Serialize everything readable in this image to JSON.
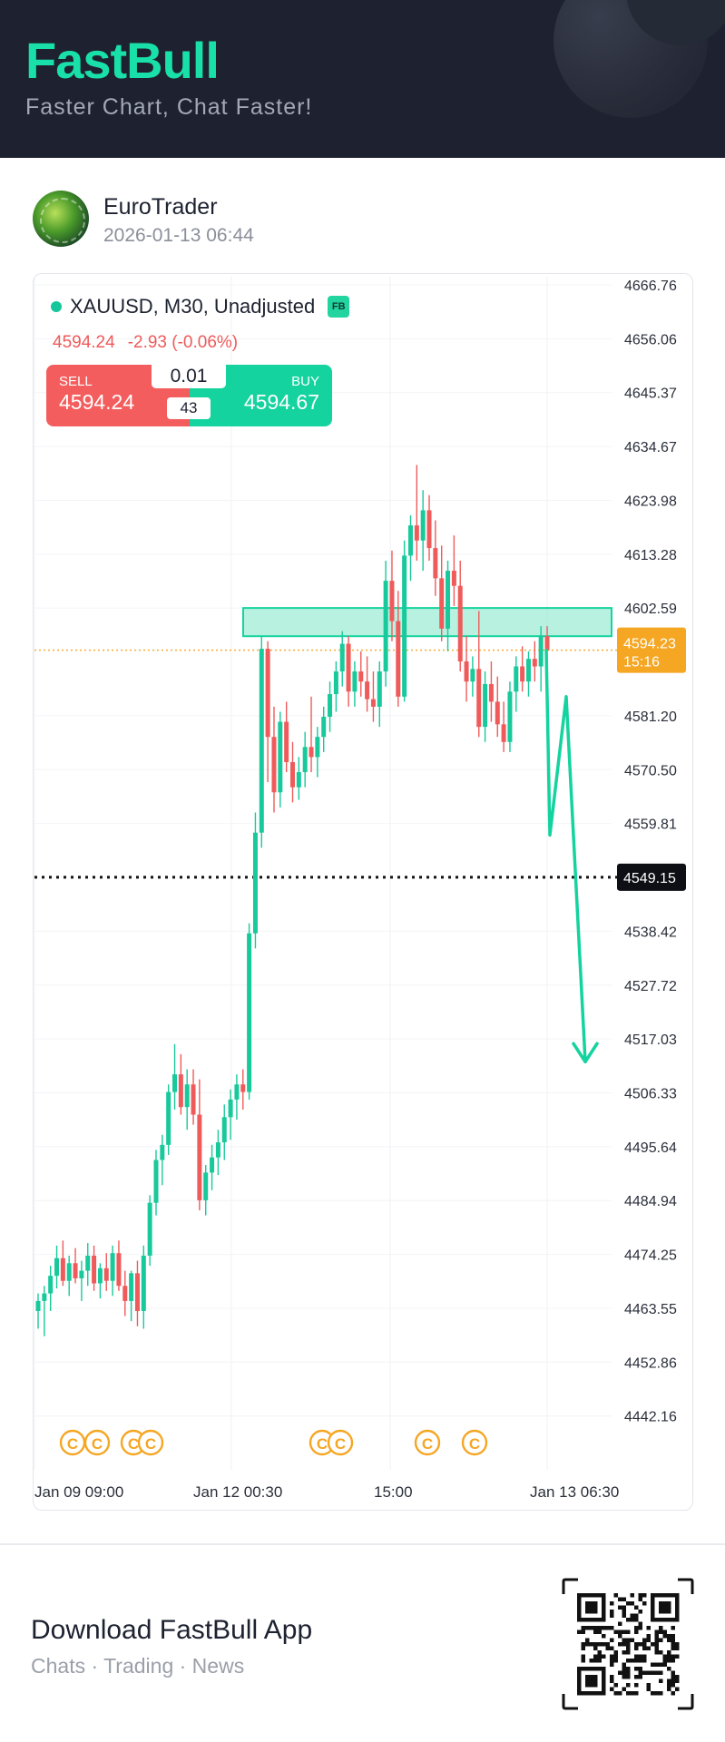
{
  "header": {
    "logo_text": "FastBull",
    "tagline": "Faster Chart, Chat Faster!"
  },
  "post": {
    "author_name": "EuroTrader",
    "timestamp": "2026-01-13 06:44"
  },
  "ticker": {
    "title": "XAUUSD, M30, Unadjusted",
    "badge": "FB",
    "price": "4594.24",
    "change": "-2.93 (-0.06%)",
    "sell_label": "SELL",
    "sell_price": "4594.24",
    "buy_label": "BUY",
    "buy_price": "4594.67",
    "lot_size": "0.01",
    "spread": "43"
  },
  "chart_data": {
    "type": "candlestick",
    "y_ticks": [
      "4666.76",
      "4656.06",
      "4645.37",
      "4634.67",
      "4623.98",
      "4613.28",
      "4602.59",
      "4581.20",
      "4570.50",
      "4559.81",
      "4538.42",
      "4527.72",
      "4517.03",
      "4506.33",
      "4495.64",
      "4484.94",
      "4474.25",
      "4463.55",
      "4452.86",
      "4442.16"
    ],
    "x_ticks": [
      "Jan 09 09:00",
      "Jan 12 00:30",
      "15:00",
      "Jan 13 06:30"
    ],
    "current_price_label": "4594.23",
    "countdown_label": "15:16",
    "target_label": "4549.15",
    "ylim": [
      4435.8,
      4670.0
    ],
    "resistance_zone": [
      4597.0,
      4602.6
    ],
    "projection": [
      [
        4594.2,
        4557.5,
        4585.0,
        4512.5
      ]
    ],
    "candles": [
      {
        "o": 4463.0,
        "h": 4466.5,
        "l": 4459.5,
        "c": 4465.0
      },
      {
        "o": 4465.0,
        "h": 4468.0,
        "l": 4458.0,
        "c": 4466.5
      },
      {
        "o": 4466.5,
        "h": 4472.0,
        "l": 4463.0,
        "c": 4470.0
      },
      {
        "o": 4470.0,
        "h": 4476.0,
        "l": 4467.5,
        "c": 4473.5
      },
      {
        "o": 4473.5,
        "h": 4477.0,
        "l": 4468.0,
        "c": 4469.0
      },
      {
        "o": 4469.0,
        "h": 4474.0,
        "l": 4466.0,
        "c": 4472.5
      },
      {
        "o": 4472.5,
        "h": 4475.5,
        "l": 4468.5,
        "c": 4469.5
      },
      {
        "o": 4469.5,
        "h": 4473.0,
        "l": 4465.0,
        "c": 4471.0
      },
      {
        "o": 4471.0,
        "h": 4476.5,
        "l": 4468.0,
        "c": 4474.0
      },
      {
        "o": 4474.0,
        "h": 4476.0,
        "l": 4467.0,
        "c": 4468.5
      },
      {
        "o": 4468.5,
        "h": 4472.5,
        "l": 4465.5,
        "c": 4471.5
      },
      {
        "o": 4471.5,
        "h": 4474.5,
        "l": 4467.0,
        "c": 4469.0
      },
      {
        "o": 4469.0,
        "h": 4476.0,
        "l": 4466.0,
        "c": 4474.5
      },
      {
        "o": 4474.5,
        "h": 4477.0,
        "l": 4467.0,
        "c": 4468.0
      },
      {
        "o": 4468.0,
        "h": 4471.0,
        "l": 4462.0,
        "c": 4465.0
      },
      {
        "o": 4465.0,
        "h": 4471.0,
        "l": 4461.0,
        "c": 4470.5
      },
      {
        "o": 4470.5,
        "h": 4473.0,
        "l": 4460.0,
        "c": 4463.0
      },
      {
        "o": 4463.0,
        "h": 4476.0,
        "l": 4459.5,
        "c": 4474.0
      },
      {
        "o": 4474.0,
        "h": 4486.0,
        "l": 4472.0,
        "c": 4484.5
      },
      {
        "o": 4484.5,
        "h": 4495.0,
        "l": 4482.0,
        "c": 4493.0
      },
      {
        "o": 4493.0,
        "h": 4498.0,
        "l": 4488.0,
        "c": 4496.0
      },
      {
        "o": 4496.0,
        "h": 4508.0,
        "l": 4494.0,
        "c": 4506.5
      },
      {
        "o": 4506.5,
        "h": 4516.0,
        "l": 4503.0,
        "c": 4510.0
      },
      {
        "o": 4510.0,
        "h": 4514.0,
        "l": 4502.0,
        "c": 4503.5
      },
      {
        "o": 4503.5,
        "h": 4511.0,
        "l": 4499.0,
        "c": 4508.0
      },
      {
        "o": 4508.0,
        "h": 4511.0,
        "l": 4500.0,
        "c": 4502.0
      },
      {
        "o": 4502.0,
        "h": 4509.0,
        "l": 4483.0,
        "c": 4485.0
      },
      {
        "o": 4485.0,
        "h": 4492.0,
        "l": 4482.0,
        "c": 4490.5
      },
      {
        "o": 4490.5,
        "h": 4496.0,
        "l": 4487.0,
        "c": 4493.5
      },
      {
        "o": 4493.5,
        "h": 4499.0,
        "l": 4490.0,
        "c": 4496.5
      },
      {
        "o": 4496.5,
        "h": 4504.0,
        "l": 4493.0,
        "c": 4501.5
      },
      {
        "o": 4501.5,
        "h": 4507.0,
        "l": 4497.0,
        "c": 4505.0
      },
      {
        "o": 4505.0,
        "h": 4510.0,
        "l": 4501.0,
        "c": 4508.0
      },
      {
        "o": 4508.0,
        "h": 4511.0,
        "l": 4503.0,
        "c": 4506.5
      },
      {
        "o": 4506.5,
        "h": 4540.0,
        "l": 4505.0,
        "c": 4538.0
      },
      {
        "o": 4538.0,
        "h": 4562.0,
        "l": 4535.0,
        "c": 4558.0
      },
      {
        "o": 4558.0,
        "h": 4597.0,
        "l": 4555.0,
        "c": 4594.5
      },
      {
        "o": 4594.5,
        "h": 4596.0,
        "l": 4568.0,
        "c": 4577.0
      },
      {
        "o": 4577.0,
        "h": 4583.0,
        "l": 4562.0,
        "c": 4566.0
      },
      {
        "o": 4566.0,
        "h": 4582.0,
        "l": 4563.0,
        "c": 4580.0
      },
      {
        "o": 4580.0,
        "h": 4584.0,
        "l": 4570.0,
        "c": 4572.0
      },
      {
        "o": 4572.0,
        "h": 4576.0,
        "l": 4564.0,
        "c": 4567.0
      },
      {
        "o": 4567.0,
        "h": 4573.0,
        "l": 4564.5,
        "c": 4570.0
      },
      {
        "o": 4570.0,
        "h": 4578.0,
        "l": 4567.0,
        "c": 4575.0
      },
      {
        "o": 4575.0,
        "h": 4585.0,
        "l": 4570.0,
        "c": 4573.0
      },
      {
        "o": 4573.0,
        "h": 4579.0,
        "l": 4569.0,
        "c": 4577.0
      },
      {
        "o": 4577.0,
        "h": 4583.0,
        "l": 4574.0,
        "c": 4581.0
      },
      {
        "o": 4581.0,
        "h": 4588.0,
        "l": 4578.0,
        "c": 4585.5
      },
      {
        "o": 4585.5,
        "h": 4592.0,
        "l": 4582.0,
        "c": 4590.0
      },
      {
        "o": 4590.0,
        "h": 4598.0,
        "l": 4587.0,
        "c": 4595.5
      },
      {
        "o": 4595.5,
        "h": 4597.0,
        "l": 4583.0,
        "c": 4586.0
      },
      {
        "o": 4586.0,
        "h": 4592.0,
        "l": 4583.0,
        "c": 4590.0
      },
      {
        "o": 4590.0,
        "h": 4594.0,
        "l": 4585.0,
        "c": 4588.0
      },
      {
        "o": 4588.0,
        "h": 4593.0,
        "l": 4582.0,
        "c": 4584.5
      },
      {
        "o": 4584.5,
        "h": 4590.0,
        "l": 4580.0,
        "c": 4583.0
      },
      {
        "o": 4583.0,
        "h": 4592.0,
        "l": 4579.0,
        "c": 4590.0
      },
      {
        "o": 4590.0,
        "h": 4612.0,
        "l": 4587.0,
        "c": 4608.0
      },
      {
        "o": 4608.0,
        "h": 4614.0,
        "l": 4596.0,
        "c": 4600.0
      },
      {
        "o": 4600.0,
        "h": 4606.0,
        "l": 4583.0,
        "c": 4585.0
      },
      {
        "o": 4585.0,
        "h": 4616.0,
        "l": 4584.0,
        "c": 4613.0
      },
      {
        "o": 4613.0,
        "h": 4621.0,
        "l": 4608.0,
        "c": 4619.0
      },
      {
        "o": 4619.0,
        "h": 4631.0,
        "l": 4612.0,
        "c": 4616.0
      },
      {
        "o": 4616.0,
        "h": 4626.0,
        "l": 4610.0,
        "c": 4622.0
      },
      {
        "o": 4622.0,
        "h": 4625.0,
        "l": 4612.0,
        "c": 4614.5
      },
      {
        "o": 4614.5,
        "h": 4620.0,
        "l": 4605.0,
        "c": 4608.5
      },
      {
        "o": 4608.5,
        "h": 4615.0,
        "l": 4596.0,
        "c": 4598.5
      },
      {
        "o": 4598.5,
        "h": 4612.0,
        "l": 4594.0,
        "c": 4610.0
      },
      {
        "o": 4610.0,
        "h": 4617.0,
        "l": 4603.0,
        "c": 4607.0
      },
      {
        "o": 4607.0,
        "h": 4612.0,
        "l": 4590.0,
        "c": 4592.0
      },
      {
        "o": 4592.0,
        "h": 4597.0,
        "l": 4584.0,
        "c": 4588.0
      },
      {
        "o": 4588.0,
        "h": 4593.0,
        "l": 4585.0,
        "c": 4590.5
      },
      {
        "o": 4590.5,
        "h": 4602.0,
        "l": 4577.0,
        "c": 4579.0
      },
      {
        "o": 4579.0,
        "h": 4590.0,
        "l": 4576.0,
        "c": 4587.5
      },
      {
        "o": 4587.5,
        "h": 4592.0,
        "l": 4580.0,
        "c": 4584.0
      },
      {
        "o": 4584.0,
        "h": 4589.0,
        "l": 4577.0,
        "c": 4579.5
      },
      {
        "o": 4579.5,
        "h": 4584.0,
        "l": 4574.0,
        "c": 4576.0
      },
      {
        "o": 4576.0,
        "h": 4588.0,
        "l": 4574.0,
        "c": 4586.0
      },
      {
        "o": 4586.0,
        "h": 4593.0,
        "l": 4582.0,
        "c": 4591.0
      },
      {
        "o": 4591.0,
        "h": 4595.0,
        "l": 4586.0,
        "c": 4588.0
      },
      {
        "o": 4588.0,
        "h": 4594.0,
        "l": 4585.0,
        "c": 4592.5
      },
      {
        "o": 4592.5,
        "h": 4596.0,
        "l": 4588.0,
        "c": 4591.0
      },
      {
        "o": 4591.0,
        "h": 4599.0,
        "l": 4586.0,
        "c": 4597.0
      },
      {
        "o": 4597.0,
        "h": 4599.0,
        "l": 4588.0,
        "c": 4594.2
      }
    ],
    "event_markers": [
      "C",
      "C",
      "C",
      "C",
      "C",
      "C",
      "C",
      "C"
    ],
    "colors": {
      "up": "#18c99b",
      "down": "#ef5b5b",
      "zone": "#7fe6c8",
      "accent": "#14d39f",
      "orange": "#f5a623"
    }
  },
  "footer": {
    "download_title": "Download FastBull App",
    "download_sub": "Chats · Trading · News"
  }
}
